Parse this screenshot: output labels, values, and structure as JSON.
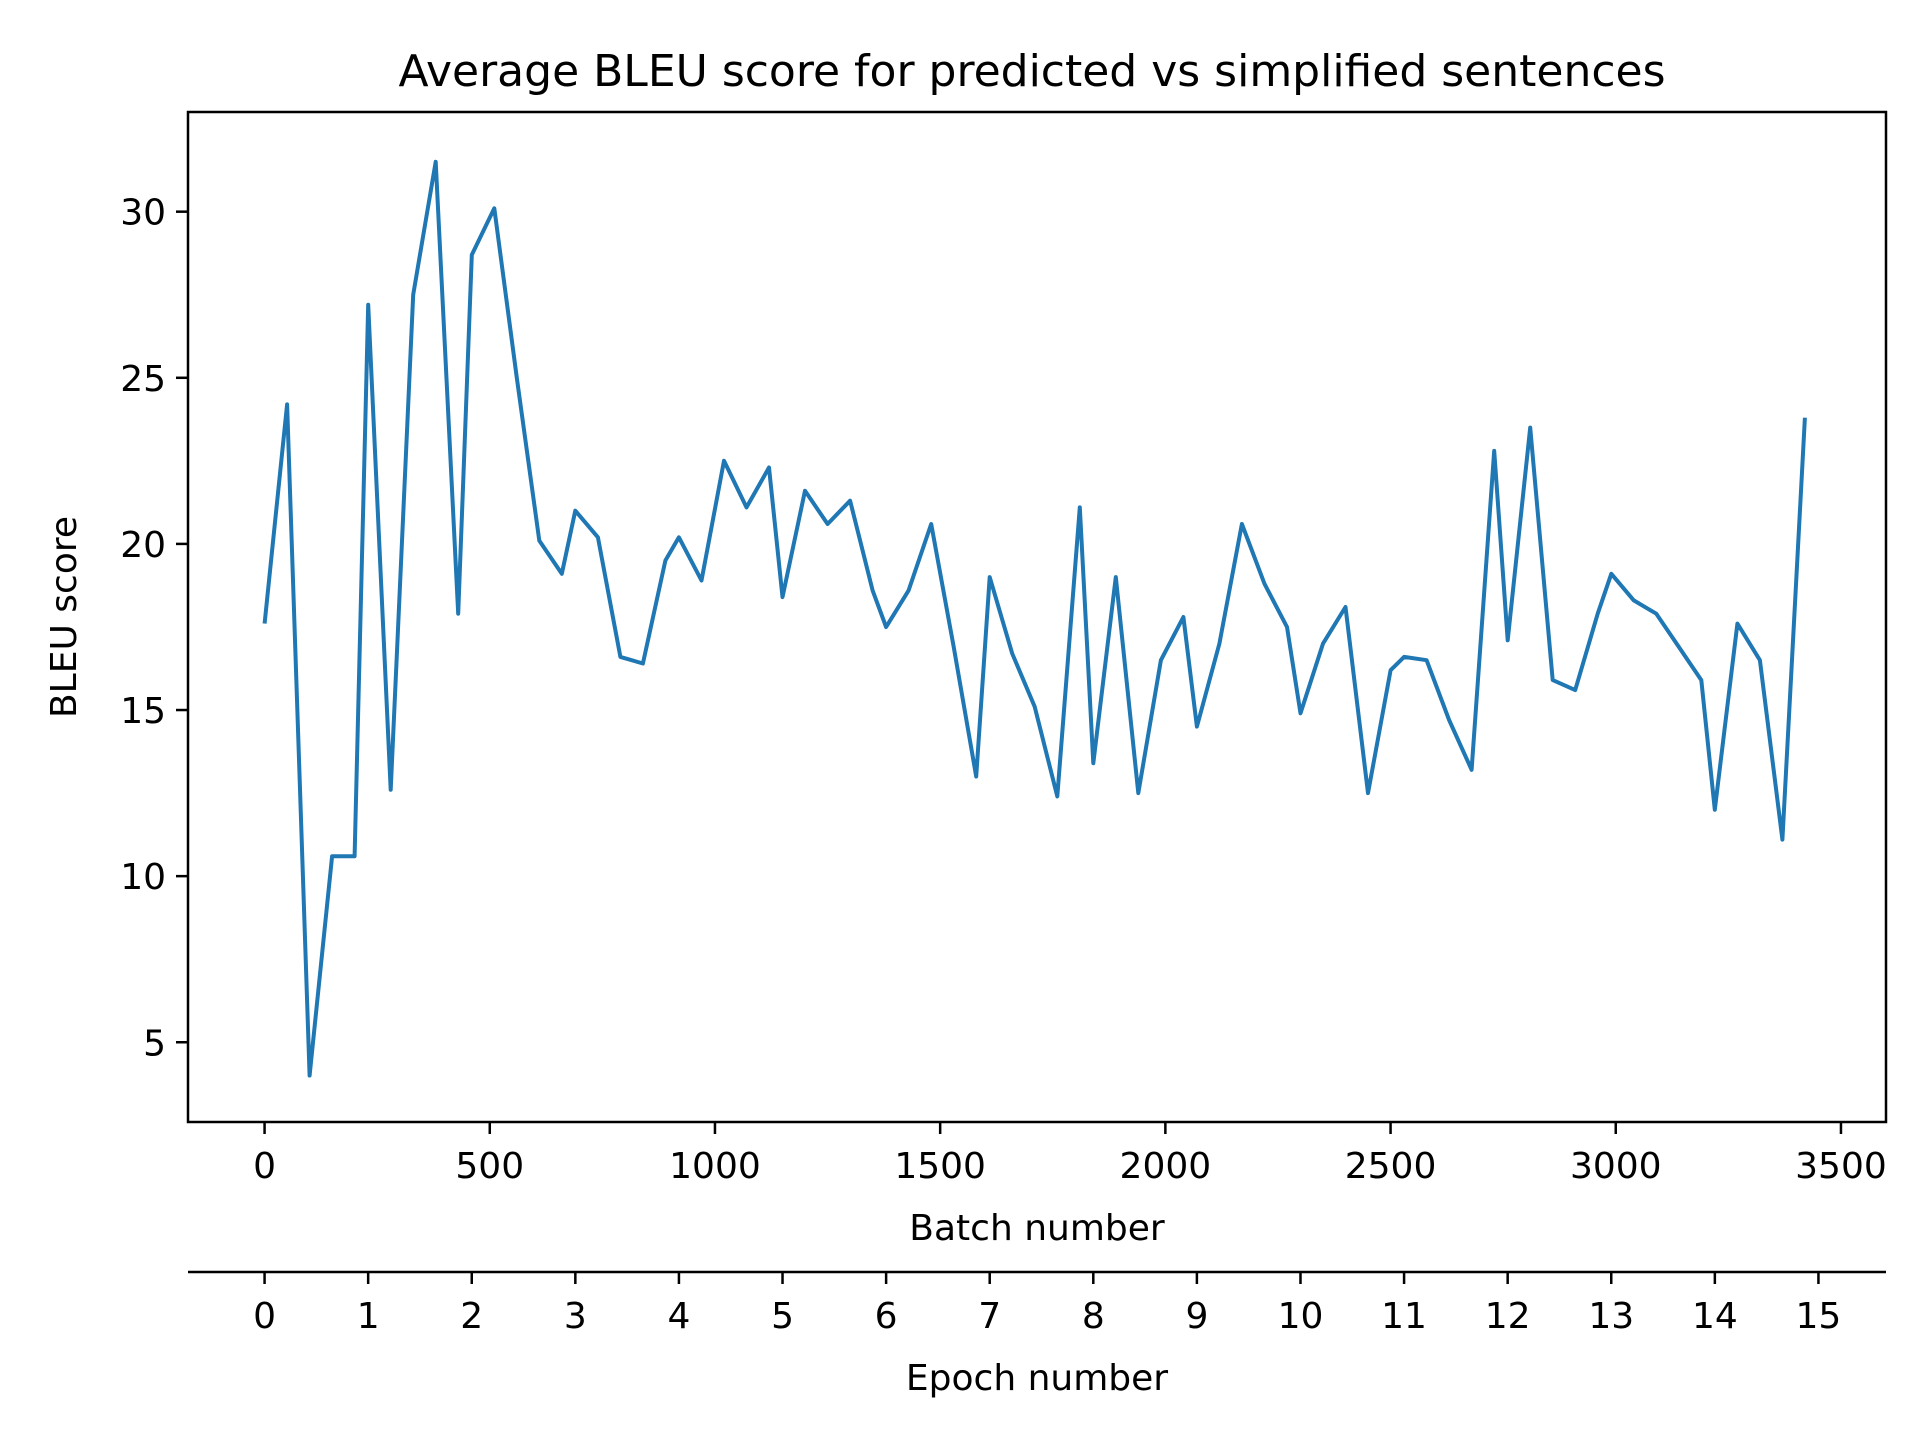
{
  "chart_data": {
    "type": "line",
    "title": "Average BLEU score for predicted vs simplified sentences",
    "xlabel": "Batch number",
    "ylabel": "BLEU score",
    "secondary_xlabel": "Epoch number",
    "xlim": [
      -170,
      3600
    ],
    "ylim": [
      2.6,
      33
    ],
    "xticks": [
      0,
      500,
      1000,
      1500,
      2000,
      2500,
      3000,
      3500
    ],
    "yticks": [
      5,
      10,
      15,
      20,
      25,
      30
    ],
    "secondary_xticks": {
      "labels": [
        "0",
        "1",
        "2",
        "3",
        "4",
        "5",
        "6",
        "7",
        "8",
        "9",
        "10",
        "11",
        "12",
        "13",
        "14",
        "15"
      ],
      "batch_positions": [
        0,
        230,
        460,
        690,
        920,
        1150,
        1380,
        1610,
        1840,
        2070,
        2300,
        2530,
        2760,
        2990,
        3220,
        3450
      ]
    },
    "grid": false,
    "color": "#1f77b4",
    "series": [
      {
        "x": [
          0,
          50,
          100,
          150,
          200,
          230,
          280,
          330,
          380,
          430,
          460,
          510,
          560,
          610,
          660,
          690,
          740,
          790,
          840,
          890,
          920,
          970,
          1020,
          1070,
          1120,
          1150,
          1200,
          1250,
          1300,
          1350,
          1380,
          1430,
          1480,
          1530,
          1580,
          1610,
          1660,
          1710,
          1760,
          1810,
          1840,
          1890,
          1940,
          1990,
          2040,
          2070,
          2120,
          2170,
          2220,
          2270,
          2300,
          2350,
          2400,
          2450,
          2500,
          2530,
          2580,
          2630,
          2680,
          2730,
          2760,
          2810,
          2860,
          2910,
          2960,
          2990,
          3040,
          3090,
          3140,
          3190,
          3220,
          3270,
          3320,
          3370,
          3420
        ],
        "y": [
          17.6,
          24.2,
          4.0,
          10.6,
          10.6,
          27.2,
          12.6,
          27.5,
          31.5,
          17.9,
          28.7,
          30.1,
          25.0,
          20.1,
          19.1,
          21.0,
          20.2,
          16.6,
          16.4,
          19.5,
          20.2,
          18.9,
          22.5,
          21.1,
          22.3,
          18.4,
          21.6,
          20.6,
          21.3,
          18.6,
          17.5,
          18.6,
          20.6,
          16.9,
          13.0,
          19.0,
          16.7,
          15.1,
          12.4,
          21.1,
          13.4,
          19.0,
          12.5,
          16.5,
          17.8,
          14.5,
          17.0,
          20.6,
          18.8,
          17.5,
          14.9,
          17.0,
          18.1,
          12.5,
          16.2,
          16.6,
          16.5,
          14.7,
          13.2,
          22.8,
          17.1,
          23.5,
          15.9,
          15.6,
          17.9,
          19.1,
          18.3,
          17.9,
          16.9,
          15.9,
          12.0,
          17.6,
          16.5,
          11.1,
          23.8
        ]
      }
    ]
  }
}
